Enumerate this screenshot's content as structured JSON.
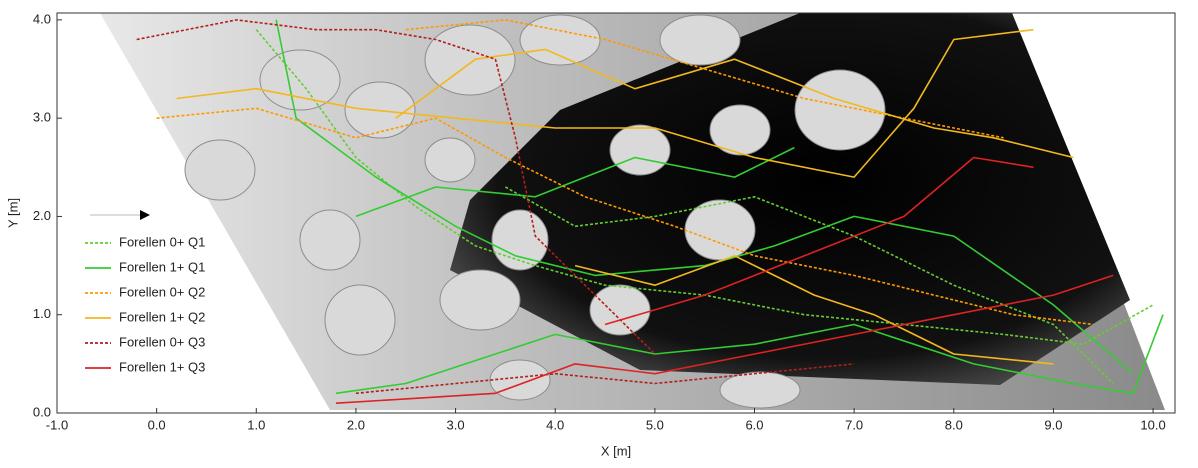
{
  "chart_data": {
    "type": "line",
    "xlabel": "X [m]",
    "ylabel": "Y [m]",
    "xlim": [
      -1.0,
      10.22
    ],
    "ylim": [
      0,
      4.07
    ],
    "xticks": [
      {
        "value": -1,
        "label": "-1.0"
      },
      {
        "value": 0,
        "label": "0.0"
      },
      {
        "value": 1,
        "label": "1.0"
      },
      {
        "value": 2,
        "label": "2.0"
      },
      {
        "value": 3,
        "label": "3.0"
      },
      {
        "value": 4,
        "label": "4.0"
      },
      {
        "value": 5,
        "label": "5.0"
      },
      {
        "value": 6,
        "label": "6.0"
      },
      {
        "value": 7,
        "label": "7.0"
      },
      {
        "value": 8,
        "label": "8.0"
      },
      {
        "value": 9,
        "label": "9.0"
      },
      {
        "value": 10,
        "label": "10.0"
      }
    ],
    "yticks": [
      {
        "value": 0,
        "label": "0.0"
      },
      {
        "value": 1,
        "label": "1.0"
      },
      {
        "value": 2,
        "label": "2.0"
      },
      {
        "value": 3,
        "label": "3.0"
      },
      {
        "value": 4,
        "label": "4.0"
      }
    ],
    "legend": "lower left",
    "series": [
      {
        "name": "Forellen 0+ Q1",
        "color": "#66cc33",
        "linestyle": "dotted",
        "x": [
          1.0,
          1.5,
          2.0,
          2.6,
          3.2,
          3.8,
          4.5,
          5.5,
          6.5,
          7.5,
          8.5,
          9.3,
          10.0,
          null,
          3.5,
          4.2,
          5.0,
          6.0,
          7.0,
          8.0,
          9.0,
          9.6
        ],
        "values": [
          3.9,
          3.3,
          2.6,
          2.1,
          1.7,
          1.5,
          1.3,
          1.2,
          1.0,
          0.9,
          0.8,
          0.7,
          1.1,
          null,
          2.3,
          1.9,
          2.0,
          2.2,
          1.8,
          1.3,
          0.9,
          0.3
        ]
      },
      {
        "name": "Forellen 1+ Q1",
        "color": "#33cc33",
        "linestyle": "solid",
        "x": [
          1.2,
          1.4,
          2.2,
          3.0,
          3.6,
          4.4,
          5.5,
          6.2,
          7.0,
          8.0,
          9.0,
          9.8,
          null,
          1.8,
          2.5,
          3.4,
          4.0,
          5.0,
          6.0,
          7.0,
          8.2,
          9.2,
          9.8,
          10.1,
          null,
          2.0,
          2.8,
          3.8,
          4.8,
          5.8,
          6.4
        ],
        "values": [
          4.0,
          3.0,
          2.4,
          1.9,
          1.6,
          1.4,
          1.5,
          1.7,
          2.0,
          1.8,
          1.1,
          0.4,
          null,
          0.2,
          0.3,
          0.6,
          0.8,
          0.6,
          0.7,
          0.9,
          0.5,
          0.3,
          0.2,
          1.0,
          null,
          2.0,
          2.3,
          2.2,
          2.6,
          2.4,
          2.7
        ]
      },
      {
        "name": "Forellen 0+ Q2",
        "color": "#ff9900",
        "linestyle": "dotted",
        "x": [
          0.0,
          1.0,
          2.0,
          2.8,
          3.5,
          4.3,
          5.2,
          6.0,
          7.0,
          7.8,
          8.6,
          9.4,
          null,
          2.5,
          3.5,
          4.5,
          5.5,
          6.5,
          7.5,
          8.5
        ],
        "values": [
          3.0,
          3.1,
          2.8,
          3.0,
          2.6,
          2.2,
          1.9,
          1.6,
          1.4,
          1.2,
          1.0,
          0.9,
          null,
          3.9,
          4.0,
          3.8,
          3.5,
          3.2,
          3.0,
          2.8
        ]
      },
      {
        "name": "Forellen 1+ Q2",
        "color": "#f2b81e",
        "linestyle": "solid",
        "x": [
          0.2,
          1.0,
          2.0,
          3.0,
          4.0,
          5.0,
          6.0,
          7.0,
          7.6,
          8.0,
          8.8,
          null,
          4.2,
          5.0,
          5.8,
          6.6,
          7.2,
          8.0,
          9.0,
          null,
          2.4,
          3.2,
          3.9,
          4.8,
          5.8,
          6.8,
          7.8,
          8.4,
          9.2
        ],
        "values": [
          3.2,
          3.3,
          3.1,
          3.0,
          2.9,
          2.9,
          2.6,
          2.4,
          3.1,
          3.8,
          3.9,
          null,
          1.5,
          1.3,
          1.6,
          1.2,
          1.0,
          0.6,
          0.5,
          null,
          3.0,
          3.6,
          3.7,
          3.3,
          3.6,
          3.2,
          2.9,
          2.8,
          2.6
        ]
      },
      {
        "name": "Forellen 0+ Q3",
        "color": "#b0201c",
        "linestyle": "dotted",
        "x": [
          -0.2,
          0.8,
          1.6,
          2.2,
          2.8,
          3.4,
          3.6,
          3.8,
          4.4,
          5.0,
          null,
          2.0,
          3.0,
          4.0,
          5.0,
          6.0,
          7.0
        ],
        "values": [
          3.8,
          4.0,
          3.9,
          3.9,
          3.8,
          3.6,
          2.8,
          1.8,
          1.2,
          0.6,
          null,
          0.2,
          0.3,
          0.4,
          0.3,
          0.4,
          0.5
        ]
      },
      {
        "name": "Forellen 1+ Q3",
        "color": "#dd2222",
        "linestyle": "solid",
        "x": [
          1.8,
          2.6,
          3.4,
          4.2,
          5.0,
          6.0,
          7.0,
          8.0,
          9.0,
          9.6,
          null,
          4.5,
          5.5,
          6.5,
          7.5,
          8.2,
          8.8
        ],
        "values": [
          0.1,
          0.15,
          0.2,
          0.5,
          0.4,
          0.6,
          0.8,
          1.0,
          1.2,
          1.4,
          null,
          0.9,
          1.2,
          1.6,
          2.0,
          2.6,
          2.5
        ]
      }
    ]
  }
}
